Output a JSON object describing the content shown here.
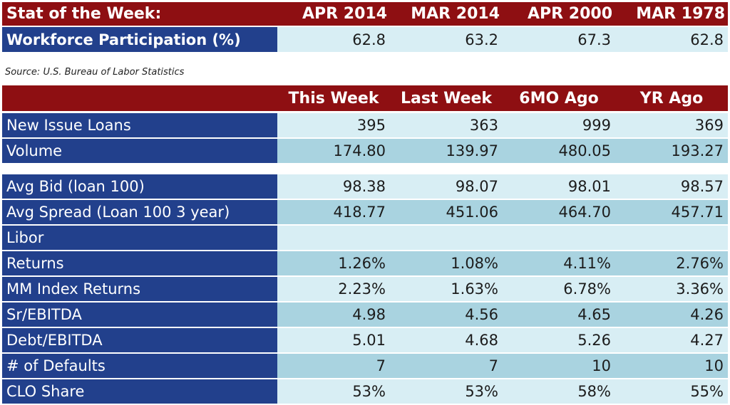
{
  "stat": {
    "title": "Stat of the Week:",
    "columns": [
      "APR 2014",
      "MAR 2014",
      "APR 2000",
      "MAR 1978"
    ],
    "row_label": "Workforce Participation (%)",
    "values": [
      "62.8",
      "63.2",
      "67.3",
      "62.8"
    ]
  },
  "source": "Source: U.S. Bureau of Labor Statistics",
  "loans": {
    "columns": [
      "This Week",
      "Last Week",
      "6MO Ago",
      "YR Ago"
    ],
    "group1": [
      {
        "label": "New Issue Loans",
        "values": [
          "395",
          "363",
          "999",
          "369"
        ]
      },
      {
        "label": "Volume",
        "values": [
          "174.80",
          "139.97",
          "480.05",
          "193.27"
        ]
      }
    ],
    "group2": [
      {
        "label": "Avg Bid (loan 100)",
        "values": [
          "98.38",
          "98.07",
          "98.01",
          "98.57"
        ]
      },
      {
        "label": "Avg Spread (Loan 100 3 year)",
        "values": [
          "418.77",
          "451.06",
          "464.70",
          "457.71"
        ]
      },
      {
        "label": "Libor",
        "values": [
          "",
          "",
          "",
          ""
        ]
      },
      {
        "label": "Returns",
        "values": [
          "1.26%",
          "1.08%",
          "4.11%",
          "2.76%"
        ]
      },
      {
        "label": "MM Index Returns",
        "values": [
          "2.23%",
          "1.63%",
          "6.78%",
          "3.36%"
        ]
      },
      {
        "label": "Sr/EBITDA",
        "values": [
          "4.98",
          "4.56",
          "4.65",
          "4.26"
        ]
      },
      {
        "label": "Debt/EBITDA",
        "values": [
          "5.01",
          "4.68",
          "5.26",
          "4.27"
        ]
      },
      {
        "label": "# of Defaults",
        "values": [
          "7",
          "7",
          "10",
          "10"
        ]
      },
      {
        "label": "CLO Share",
        "values": [
          "53%",
          "53%",
          "58%",
          "55%"
        ]
      }
    ]
  },
  "colors": {
    "header_red": "#8e0f12",
    "label_blue": "#22408c",
    "row_light": "#d8eef4",
    "row_dark": "#a9d3e0"
  }
}
